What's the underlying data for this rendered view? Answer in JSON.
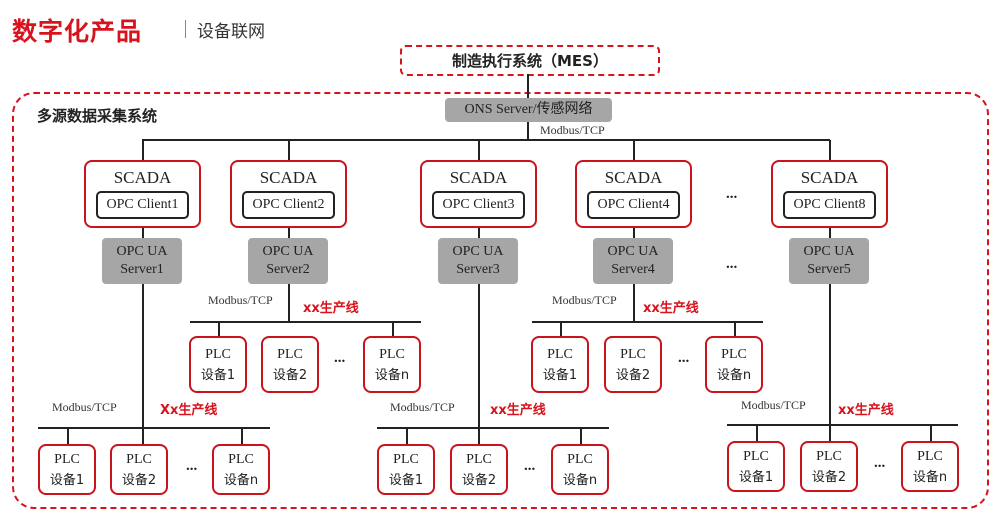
{
  "header": {
    "title": "数字化产品",
    "subtitle": "设备联网"
  },
  "mes": {
    "label": "制造执行系统（MES）"
  },
  "system": {
    "label": "多源数据采集系统"
  },
  "ons": {
    "label": "ONS Server/传感网络",
    "link_label": "Modbus/TCP"
  },
  "scada_nodes": [
    {
      "title": "SCADA",
      "client": "OPC Client1",
      "server": [
        "OPC UA",
        "Server1"
      ]
    },
    {
      "title": "SCADA",
      "client": "OPC Client2",
      "server": [
        "OPC UA",
        "Server2"
      ]
    },
    {
      "title": "SCADA",
      "client": "OPC Client3",
      "server": [
        "OPC UA",
        "Server3"
      ]
    },
    {
      "title": "SCADA",
      "client": "OPC Client4",
      "server": [
        "OPC UA",
        "Server4"
      ]
    },
    {
      "title": "SCADA",
      "client": "OPC Client8",
      "server": [
        "OPC UA",
        "Server5"
      ]
    }
  ],
  "ellipsis": "...",
  "lines": [
    {
      "protocol": "Modbus/TCP",
      "name": "Xx生产线",
      "devices": [
        [
          "PLC",
          "设备1"
        ],
        [
          "PLC",
          "设备2"
        ],
        [
          "PLC",
          "设备n"
        ]
      ]
    },
    {
      "protocol": "Modbus/TCP",
      "name": "xx生产线",
      "devices": [
        [
          "PLC",
          "设备1"
        ],
        [
          "PLC",
          "设备2"
        ],
        [
          "PLC",
          "设备n"
        ]
      ]
    },
    {
      "protocol": "Modbus/TCP",
      "name": "xx生产线",
      "devices": [
        [
          "PLC",
          "设备1"
        ],
        [
          "PLC",
          "设备2"
        ],
        [
          "PLC",
          "设备n"
        ]
      ]
    },
    {
      "protocol": "Modbus/TCP",
      "name": "xx生产线",
      "devices": [
        [
          "PLC",
          "设备1"
        ],
        [
          "PLC",
          "设备2"
        ],
        [
          "PLC",
          "设备n"
        ]
      ]
    },
    {
      "protocol": "Modbus/TCP",
      "name": "xx生产线",
      "devices": [
        [
          "PLC",
          "设备1"
        ],
        [
          "PLC",
          "设备2"
        ],
        [
          "PLC",
          "设备n"
        ]
      ]
    }
  ],
  "colors": {
    "accent": "#d7141e",
    "server_fill": "#a6a6a6"
  }
}
